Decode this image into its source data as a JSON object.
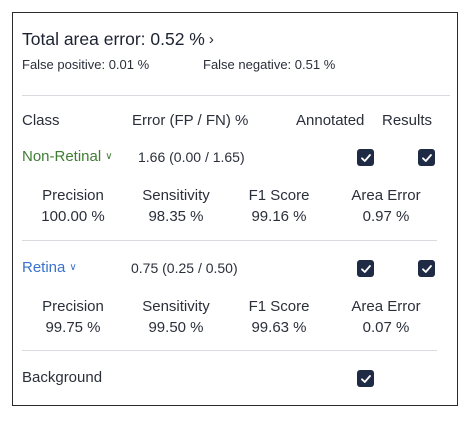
{
  "summary": {
    "total_label": "Total area error: 0.52 %",
    "false_positive": "False positive: 0.01 %",
    "false_negative": "False negative: 0.51 %"
  },
  "table": {
    "headers": {
      "class": "Class",
      "error": "Error (FP / FN) %",
      "annotated": "Annotated",
      "results": "Results"
    },
    "classes": [
      {
        "name": "Non-Retinal",
        "color": "#3f7d33",
        "error": "1.66 (0.00 / 1.65)",
        "annotated": true,
        "results": true,
        "metrics": [
          {
            "label": "Precision",
            "value": "100.00 %"
          },
          {
            "label": "Sensitivity",
            "value": "98.35 %"
          },
          {
            "label": "F1 Score",
            "value": "99.16 %"
          },
          {
            "label": "Area Error",
            "value": "0.97 %"
          }
        ]
      },
      {
        "name": "Retina",
        "color": "#3a72cf",
        "error": "0.75 (0.25 / 0.50)",
        "annotated": true,
        "results": true,
        "metrics": [
          {
            "label": "Precision",
            "value": "99.75 %"
          },
          {
            "label": "Sensitivity",
            "value": "99.50 %"
          },
          {
            "label": "F1 Score",
            "value": "99.63 %"
          },
          {
            "label": "Area Error",
            "value": "0.07 %"
          }
        ]
      },
      {
        "name": "Background",
        "annotated": true
      }
    ]
  },
  "icons": {
    "chevron_right": "chevron-right-icon",
    "chevron_down": "chevron-down-icon",
    "check": "check-icon"
  }
}
